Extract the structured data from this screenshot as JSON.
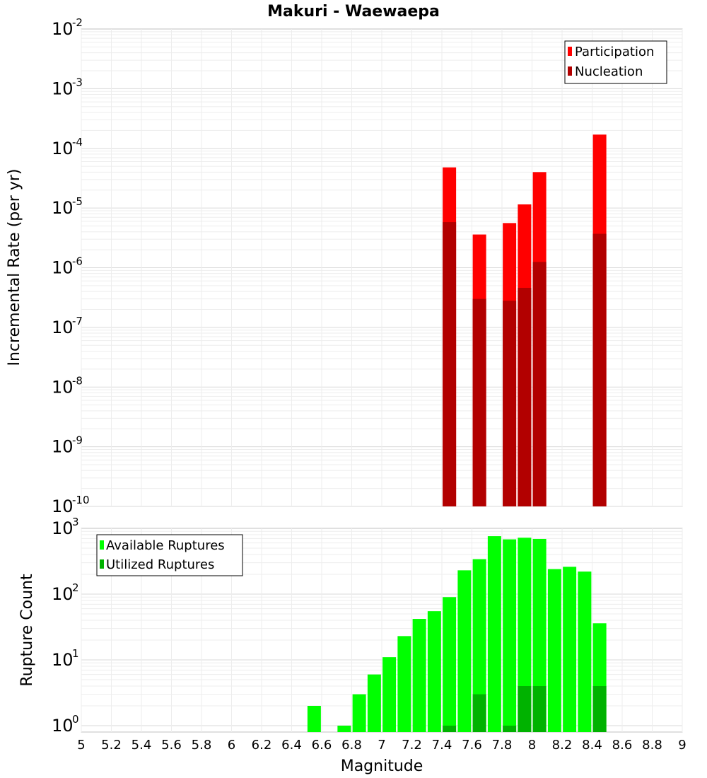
{
  "chart_data": [
    {
      "type": "bar",
      "title": "Makuri - Waewaepa",
      "ylabel": "Incremental Rate (per yr)",
      "yscale": "log",
      "ylim": [
        1e-10,
        0.01
      ],
      "xlim": [
        5,
        9
      ],
      "legend": "top-right",
      "grid": true,
      "y_ticks": [
        {
          "base": "10",
          "exp": "-10"
        },
        {
          "base": "10",
          "exp": "-9"
        },
        {
          "base": "10",
          "exp": "-8"
        },
        {
          "base": "10",
          "exp": "-7"
        },
        {
          "base": "10",
          "exp": "-6"
        },
        {
          "base": "10",
          "exp": "-5"
        },
        {
          "base": "10",
          "exp": "-4"
        },
        {
          "base": "10",
          "exp": "-3"
        },
        {
          "base": "10",
          "exp": "-2"
        }
      ],
      "x": [
        7.45,
        7.65,
        7.85,
        7.95,
        8.05,
        8.45
      ],
      "series": [
        {
          "name": "Participation",
          "color": "#ff0000",
          "values": [
            4.8e-05,
            3.6e-06,
            5.6e-06,
            1.15e-05,
            4e-05,
            0.00017
          ]
        },
        {
          "name": "Nucleation",
          "color": "#b20000",
          "values": [
            5.8e-06,
            3e-07,
            2.8e-07,
            4.6e-07,
            1.25e-06,
            3.7e-06
          ]
        }
      ]
    },
    {
      "type": "bar",
      "ylabel": "Rupture Count",
      "xlabel": "Magnitude",
      "yscale": "log",
      "ylim": [
        0.8,
        1000
      ],
      "xlim": [
        5,
        9
      ],
      "legend": "top-left",
      "grid": true,
      "x_ticks": [
        "5",
        "5.2",
        "5.4",
        "5.6",
        "5.8",
        "6",
        "6.2",
        "6.4",
        "6.6",
        "6.8",
        "7",
        "7.2",
        "7.4",
        "7.6",
        "7.8",
        "8",
        "8.2",
        "8.4",
        "8.6",
        "8.8",
        "9"
      ],
      "y_ticks": [
        {
          "base": "10",
          "exp": "0"
        },
        {
          "base": "10",
          "exp": "1"
        },
        {
          "base": "10",
          "exp": "2"
        },
        {
          "base": "10",
          "exp": "3"
        }
      ],
      "x": [
        6.55,
        6.75,
        6.85,
        6.95,
        7.05,
        7.15,
        7.25,
        7.35,
        7.45,
        7.55,
        7.65,
        7.75,
        7.85,
        7.95,
        8.05,
        8.15,
        8.25,
        8.35,
        8.45
      ],
      "series": [
        {
          "name": "Available Ruptures",
          "color": "#00ff00",
          "values": [
            2,
            1,
            3,
            6,
            11,
            23,
            42,
            55,
            90,
            230,
            340,
            760,
            680,
            720,
            690,
            240,
            260,
            220,
            36
          ]
        },
        {
          "name": "Utilized Ruptures",
          "color": "#00b200",
          "values": [
            0,
            0,
            0,
            0,
            0,
            0,
            0,
            0,
            1,
            0,
            3,
            0,
            1,
            4,
            4,
            0,
            0,
            0,
            4
          ]
        }
      ]
    }
  ]
}
